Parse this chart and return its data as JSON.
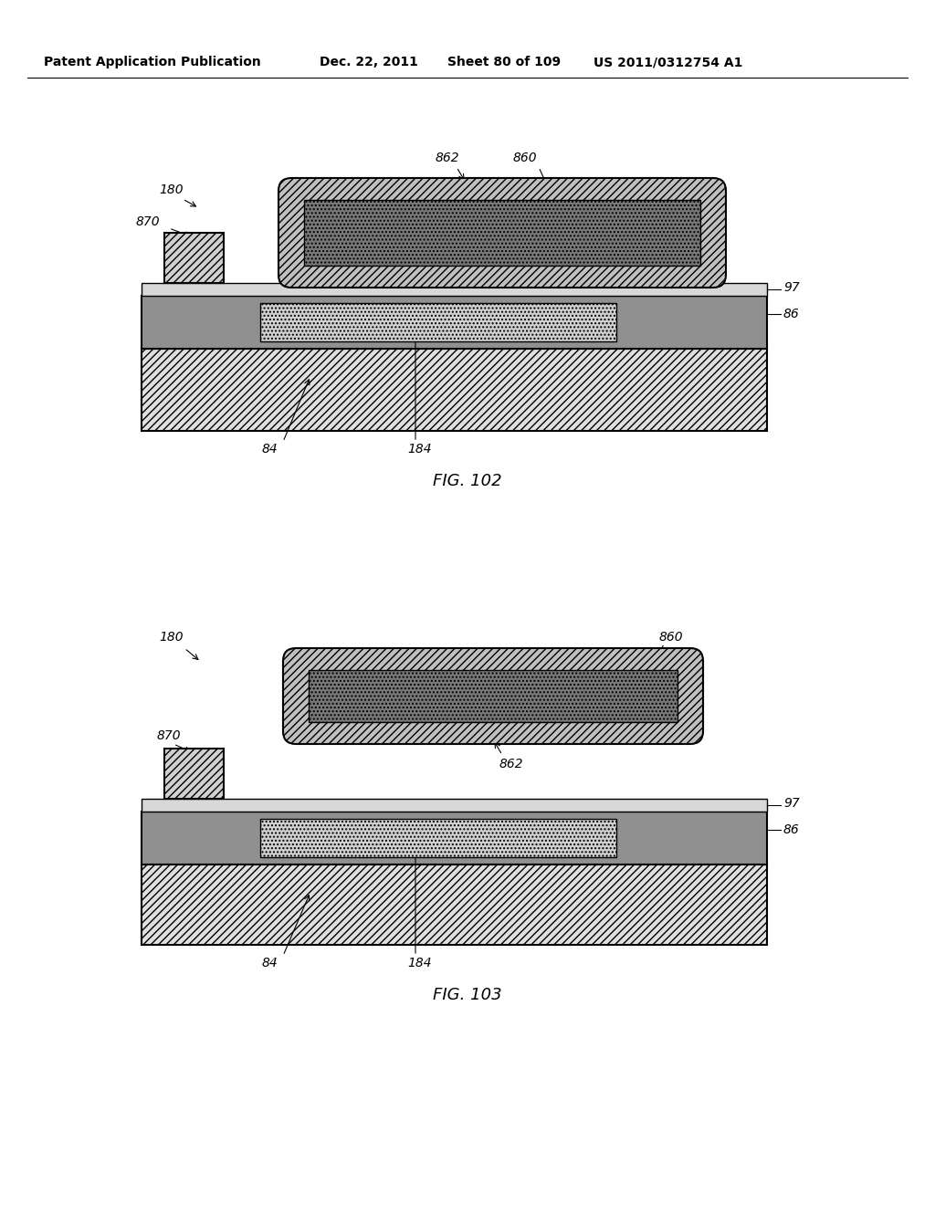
{
  "bg_color": "#ffffff",
  "header_text": "Patent Application Publication",
  "header_date": "Dec. 22, 2011",
  "header_sheet": "Sheet 80 of 109",
  "header_patent": "US 2011/0312754 A1",
  "fig102_label": "FIG. 102",
  "fig103_label": "FIG. 103"
}
